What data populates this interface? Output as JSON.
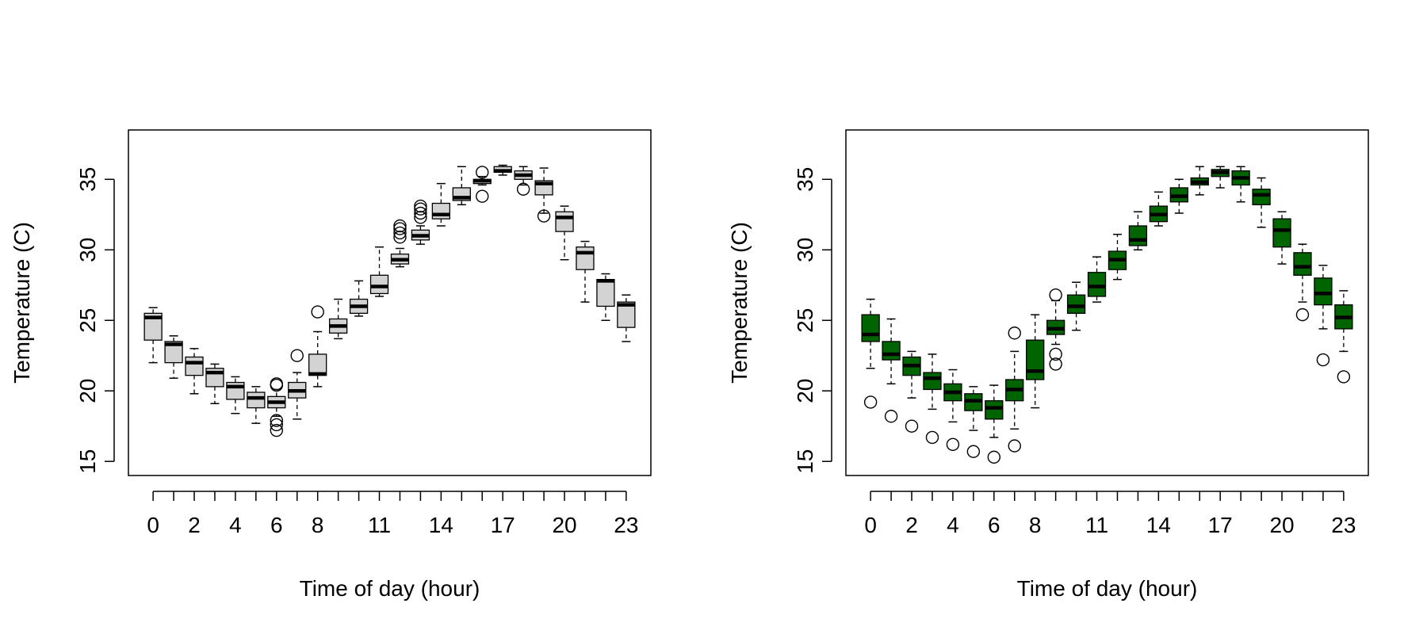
{
  "chart_data": [
    {
      "type": "boxplot",
      "xlabel": "Time of day (hour)",
      "ylabel": "Temperature (C)",
      "ylim": [
        14,
        38.5
      ],
      "yticks": [
        15,
        20,
        25,
        30,
        35
      ],
      "xlim": [
        -1.2,
        24.2
      ],
      "categories": [
        0,
        1,
        2,
        3,
        4,
        5,
        6,
        7,
        8,
        9,
        10,
        11,
        12,
        13,
        14,
        15,
        16,
        17,
        18,
        19,
        20,
        21,
        22,
        23
      ],
      "xtick_labels": [
        "0",
        "2",
        "4",
        "6",
        "8",
        "11",
        "14",
        "17",
        "20",
        "23"
      ],
      "xtick_positions": [
        0,
        2,
        4,
        6,
        8,
        11,
        14,
        17,
        20,
        23
      ],
      "box_fill": "#d3d3d3",
      "grid": false,
      "boxes": [
        {
          "hour": 0,
          "lower": 22.0,
          "q1": 23.6,
          "median": 25.2,
          "q3": 25.5,
          "upper": 25.9,
          "outliers": []
        },
        {
          "hour": 1,
          "lower": 20.9,
          "q1": 22.0,
          "median": 23.3,
          "q3": 23.5,
          "upper": 23.9,
          "outliers": []
        },
        {
          "hour": 2,
          "lower": 19.8,
          "q1": 21.1,
          "median": 22.0,
          "q3": 22.4,
          "upper": 23.0,
          "outliers": []
        },
        {
          "hour": 3,
          "lower": 19.1,
          "q1": 20.3,
          "median": 21.3,
          "q3": 21.6,
          "upper": 21.9,
          "outliers": []
        },
        {
          "hour": 4,
          "lower": 18.4,
          "q1": 19.4,
          "median": 20.3,
          "q3": 20.6,
          "upper": 21.0,
          "outliers": []
        },
        {
          "hour": 5,
          "lower": 17.7,
          "q1": 18.8,
          "median": 19.5,
          "q3": 19.9,
          "upper": 20.3,
          "outliers": []
        },
        {
          "hour": 6,
          "lower": 18.2,
          "q1": 18.8,
          "median": 19.2,
          "q3": 19.6,
          "upper": 20.1,
          "outliers": [
            17.2,
            17.6,
            17.9,
            20.4,
            20.5
          ]
        },
        {
          "hour": 7,
          "lower": 18.0,
          "q1": 19.5,
          "median": 20.0,
          "q3": 20.6,
          "upper": 21.3,
          "outliers": [
            22.5
          ]
        },
        {
          "hour": 8,
          "lower": 20.3,
          "q1": 21.1,
          "median": 21.2,
          "q3": 22.6,
          "upper": 24.2,
          "outliers": [
            25.6
          ]
        },
        {
          "hour": 9,
          "lower": 23.7,
          "q1": 24.1,
          "median": 24.6,
          "q3": 25.1,
          "upper": 26.5,
          "outliers": []
        },
        {
          "hour": 10,
          "lower": 25.3,
          "q1": 25.5,
          "median": 26.0,
          "q3": 26.5,
          "upper": 27.8,
          "outliers": []
        },
        {
          "hour": 11,
          "lower": 26.7,
          "q1": 26.9,
          "median": 27.4,
          "q3": 28.2,
          "upper": 30.2,
          "outliers": []
        },
        {
          "hour": 12,
          "lower": 28.8,
          "q1": 29.0,
          "median": 29.3,
          "q3": 29.7,
          "upper": 30.1,
          "outliers": [
            30.9,
            31.2,
            31.5,
            31.7
          ]
        },
        {
          "hour": 13,
          "lower": 30.4,
          "q1": 30.7,
          "median": 31.0,
          "q3": 31.4,
          "upper": 31.7,
          "outliers": [
            32.3,
            32.6,
            32.9,
            33.1
          ]
        },
        {
          "hour": 14,
          "lower": 31.7,
          "q1": 32.2,
          "median": 32.5,
          "q3": 33.3,
          "upper": 34.7,
          "outliers": []
        },
        {
          "hour": 15,
          "lower": 33.2,
          "q1": 33.5,
          "median": 33.7,
          "q3": 34.4,
          "upper": 35.9,
          "outliers": []
        },
        {
          "hour": 16,
          "lower": 34.6,
          "q1": 34.7,
          "median": 34.9,
          "q3": 35.0,
          "upper": 35.2,
          "outliers": [
            33.8,
            35.5
          ]
        },
        {
          "hour": 17,
          "lower": 35.3,
          "q1": 35.5,
          "median": 35.6,
          "q3": 35.9,
          "upper": 36.0,
          "outliers": []
        },
        {
          "hour": 18,
          "lower": 34.6,
          "q1": 35.0,
          "median": 35.3,
          "q3": 35.6,
          "upper": 35.9,
          "outliers": [
            34.3
          ]
        },
        {
          "hour": 19,
          "lower": 32.6,
          "q1": 33.9,
          "median": 34.7,
          "q3": 34.9,
          "upper": 35.8,
          "outliers": [
            32.4
          ]
        },
        {
          "hour": 20,
          "lower": 29.3,
          "q1": 31.3,
          "median": 32.3,
          "q3": 32.7,
          "upper": 33.1,
          "outliers": []
        },
        {
          "hour": 21,
          "lower": 26.3,
          "q1": 28.6,
          "median": 29.8,
          "q3": 30.2,
          "upper": 30.6,
          "outliers": []
        },
        {
          "hour": 22,
          "lower": 25.0,
          "q1": 26.0,
          "median": 27.8,
          "q3": 27.9,
          "upper": 28.3,
          "outliers": []
        },
        {
          "hour": 23,
          "lower": 23.5,
          "q1": 24.5,
          "median": 26.1,
          "q3": 26.3,
          "upper": 26.8,
          "outliers": []
        }
      ]
    },
    {
      "type": "boxplot",
      "xlabel": "Time of day (hour)",
      "ylabel": "Temperature (C)",
      "ylim": [
        14,
        38.5
      ],
      "yticks": [
        15,
        20,
        25,
        30,
        35
      ],
      "xlim": [
        -1.2,
        24.2
      ],
      "categories": [
        0,
        1,
        2,
        3,
        4,
        5,
        6,
        7,
        8,
        9,
        10,
        11,
        12,
        13,
        14,
        15,
        16,
        17,
        18,
        19,
        20,
        21,
        22,
        23
      ],
      "xtick_labels": [
        "0",
        "2",
        "4",
        "6",
        "8",
        "11",
        "14",
        "17",
        "20",
        "23"
      ],
      "xtick_positions": [
        0,
        2,
        4,
        6,
        8,
        11,
        14,
        17,
        20,
        23
      ],
      "box_fill": "#006400",
      "grid": false,
      "boxes": [
        {
          "hour": 0,
          "lower": 21.6,
          "q1": 23.5,
          "median": 24.0,
          "q3": 25.4,
          "upper": 26.5,
          "outliers": [
            19.2
          ]
        },
        {
          "hour": 1,
          "lower": 20.5,
          "q1": 22.2,
          "median": 22.6,
          "q3": 23.5,
          "upper": 25.1,
          "outliers": [
            18.2
          ]
        },
        {
          "hour": 2,
          "lower": 19.5,
          "q1": 21.1,
          "median": 21.8,
          "q3": 22.4,
          "upper": 22.8,
          "outliers": [
            17.5
          ]
        },
        {
          "hour": 3,
          "lower": 18.7,
          "q1": 20.1,
          "median": 20.9,
          "q3": 21.3,
          "upper": 22.6,
          "outliers": [
            16.7
          ]
        },
        {
          "hour": 4,
          "lower": 17.8,
          "q1": 19.3,
          "median": 19.9,
          "q3": 20.5,
          "upper": 21.5,
          "outliers": [
            16.2
          ]
        },
        {
          "hour": 5,
          "lower": 17.2,
          "q1": 18.6,
          "median": 19.3,
          "q3": 19.8,
          "upper": 20.3,
          "outliers": [
            15.7
          ]
        },
        {
          "hour": 6,
          "lower": 16.7,
          "q1": 18.0,
          "median": 18.8,
          "q3": 19.3,
          "upper": 20.4,
          "outliers": [
            15.3
          ]
        },
        {
          "hour": 7,
          "lower": 17.3,
          "q1": 19.3,
          "median": 20.1,
          "q3": 20.8,
          "upper": 22.8,
          "outliers": [
            16.1,
            24.1
          ]
        },
        {
          "hour": 8,
          "lower": 18.8,
          "q1": 20.8,
          "median": 21.4,
          "q3": 23.6,
          "upper": 25.4,
          "outliers": []
        },
        {
          "hour": 9,
          "lower": 23.3,
          "q1": 24.0,
          "median": 24.4,
          "q3": 25.0,
          "upper": 26.4,
          "outliers": [
            21.9,
            22.6,
            26.8
          ]
        },
        {
          "hour": 10,
          "lower": 24.3,
          "q1": 25.5,
          "median": 26.0,
          "q3": 26.8,
          "upper": 27.7,
          "outliers": []
        },
        {
          "hour": 11,
          "lower": 26.3,
          "q1": 26.7,
          "median": 27.4,
          "q3": 28.4,
          "upper": 29.5,
          "outliers": []
        },
        {
          "hour": 12,
          "lower": 27.9,
          "q1": 28.6,
          "median": 29.3,
          "q3": 29.9,
          "upper": 31.1,
          "outliers": []
        },
        {
          "hour": 13,
          "lower": 30.0,
          "q1": 30.3,
          "median": 30.7,
          "q3": 31.7,
          "upper": 32.7,
          "outliers": []
        },
        {
          "hour": 14,
          "lower": 31.7,
          "q1": 32.0,
          "median": 32.5,
          "q3": 33.1,
          "upper": 34.1,
          "outliers": []
        },
        {
          "hour": 15,
          "lower": 32.6,
          "q1": 33.4,
          "median": 33.8,
          "q3": 34.4,
          "upper": 35.0,
          "outliers": []
        },
        {
          "hour": 16,
          "lower": 33.9,
          "q1": 34.6,
          "median": 34.8,
          "q3": 35.1,
          "upper": 35.9,
          "outliers": []
        },
        {
          "hour": 17,
          "lower": 34.4,
          "q1": 35.2,
          "median": 35.5,
          "q3": 35.7,
          "upper": 35.9,
          "outliers": []
        },
        {
          "hour": 18,
          "lower": 33.4,
          "q1": 34.6,
          "median": 35.1,
          "q3": 35.6,
          "upper": 35.9,
          "outliers": []
        },
        {
          "hour": 19,
          "lower": 31.6,
          "q1": 33.2,
          "median": 33.9,
          "q3": 34.3,
          "upper": 35.1,
          "outliers": []
        },
        {
          "hour": 20,
          "lower": 29.0,
          "q1": 30.2,
          "median": 31.4,
          "q3": 32.2,
          "upper": 32.7,
          "outliers": []
        },
        {
          "hour": 21,
          "lower": 26.3,
          "q1": 28.2,
          "median": 28.8,
          "q3": 29.8,
          "upper": 30.4,
          "outliers": [
            25.4
          ]
        },
        {
          "hour": 22,
          "lower": 24.4,
          "q1": 26.1,
          "median": 26.9,
          "q3": 28.0,
          "upper": 28.9,
          "outliers": [
            22.2
          ]
        },
        {
          "hour": 23,
          "lower": 22.8,
          "q1": 24.4,
          "median": 25.2,
          "q3": 26.1,
          "upper": 27.1,
          "outliers": [
            21.0
          ]
        }
      ]
    }
  ]
}
